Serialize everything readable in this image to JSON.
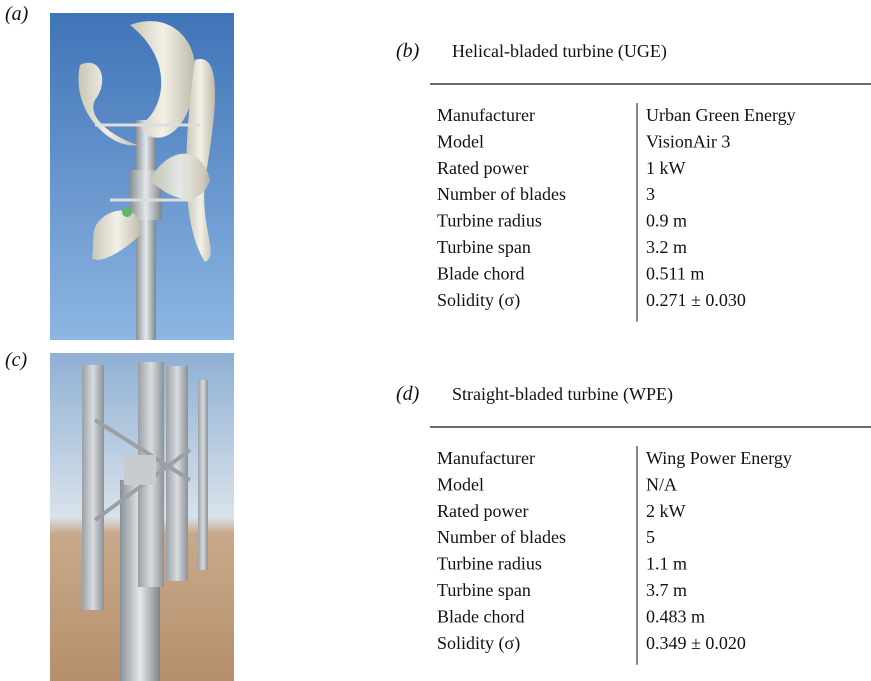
{
  "panels": [
    {
      "label": "(a)"
    },
    {
      "label": "(b)",
      "title": "Helical-bladed turbine (UGE)",
      "rows": [
        [
          "Manufacturer",
          "Urban Green Energy"
        ],
        [
          "Model",
          "VisionAir 3"
        ],
        [
          "Rated power",
          "1 kW"
        ],
        [
          "Number of blades",
          "3"
        ],
        [
          "Turbine radius",
          "0.9 m"
        ],
        [
          "Turbine span",
          "3.2 m"
        ],
        [
          "Blade chord",
          "0.511 m"
        ],
        [
          "Solidity (σ)",
          "0.271 ± 0.030"
        ]
      ]
    },
    {
      "label": "(c)"
    },
    {
      "label": "(d)",
      "title": "Straight-bladed turbine (WPE)",
      "rows": [
        [
          "Manufacturer",
          "Wing Power Energy"
        ],
        [
          "Model",
          "N/A"
        ],
        [
          "Rated power",
          "2 kW"
        ],
        [
          "Number of blades",
          "5"
        ],
        [
          "Turbine radius",
          "1.1 m"
        ],
        [
          "Turbine span",
          "3.7 m"
        ],
        [
          "Blade chord",
          "0.483 m"
        ],
        [
          "Solidity (σ)",
          "0.349 ± 0.020"
        ]
      ]
    }
  ]
}
